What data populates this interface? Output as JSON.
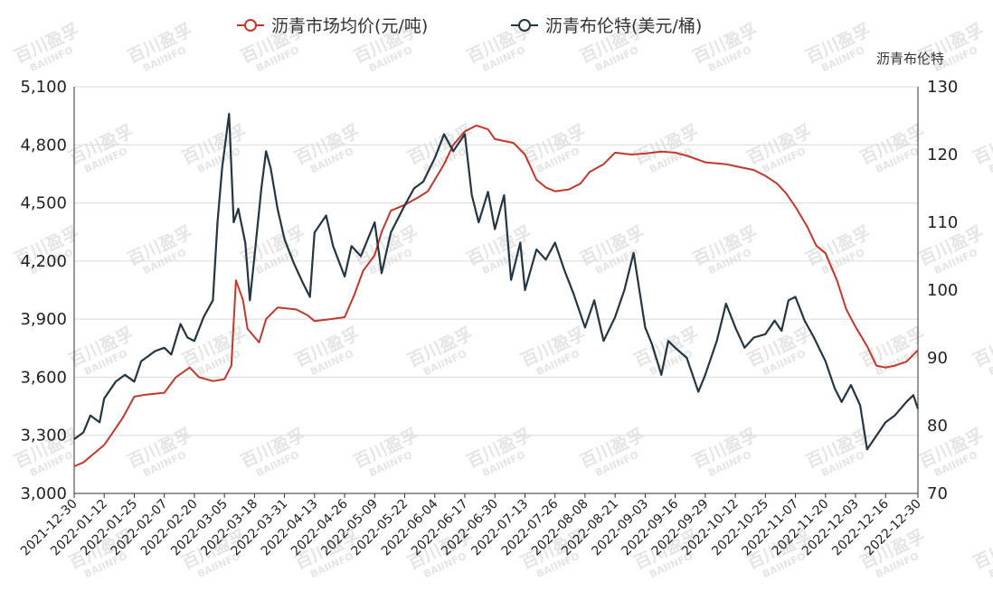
{
  "chart_data": {
    "type": "line",
    "title": "",
    "legend": {
      "placement": "top-center",
      "items": [
        "沥青市场均价(元/吨)",
        "沥青布伦特(美元/桶)"
      ]
    },
    "left_axis": {
      "label": "",
      "ylim": [
        3000,
        5100
      ],
      "ticks": [
        "3,000",
        "3,300",
        "3,600",
        "3,900",
        "4,200",
        "4,500",
        "4,800",
        "5,100"
      ]
    },
    "right_axis": {
      "label": "沥青布伦特",
      "ylim": [
        70,
        130
      ],
      "ticks": [
        "70",
        "80",
        "90",
        "100",
        "110",
        "120",
        "130"
      ]
    },
    "x_ticks": [
      "2021-12-30",
      "2022-01-12",
      "2022-01-25",
      "2022-02-07",
      "2022-02-20",
      "2022-03-05",
      "2022-03-18",
      "2022-03-31",
      "2022-04-13",
      "2022-04-26",
      "2022-05-09",
      "2022-05-22",
      "2022-06-04",
      "2022-06-17",
      "2022-06-30",
      "2022-07-13",
      "2022-07-26",
      "2022-08-08",
      "2022-08-21",
      "2022-09-03",
      "2022-09-16",
      "2022-09-29",
      "2022-10-12",
      "2022-10-25",
      "2022-11-07",
      "2022-11-20",
      "2022-12-03",
      "2022-12-16",
      "2022-12-30"
    ],
    "grid": true,
    "watermark": {
      "main": "百川盈孚",
      "sub": "BAIINFO"
    },
    "colors": {
      "price": "#c0392b",
      "brent": "#223645",
      "grid": "#d9d9d9"
    },
    "series": [
      {
        "name": "沥青市场均价(元/吨)",
        "axis": "left",
        "points": [
          [
            "2021-12-30",
            3140
          ],
          [
            "2022-01-03",
            3160
          ],
          [
            "2022-01-07",
            3200
          ],
          [
            "2022-01-12",
            3250
          ],
          [
            "2022-01-16",
            3320
          ],
          [
            "2022-01-20",
            3390
          ],
          [
            "2022-01-25",
            3500
          ],
          [
            "2022-01-30",
            3510
          ],
          [
            "2022-02-07",
            3520
          ],
          [
            "2022-02-12",
            3600
          ],
          [
            "2022-02-18",
            3650
          ],
          [
            "2022-02-22",
            3600
          ],
          [
            "2022-02-28",
            3580
          ],
          [
            "2022-03-05",
            3590
          ],
          [
            "2022-03-08",
            3660
          ],
          [
            "2022-03-10",
            4100
          ],
          [
            "2022-03-13",
            4000
          ],
          [
            "2022-03-15",
            3850
          ],
          [
            "2022-03-20",
            3780
          ],
          [
            "2022-03-23",
            3900
          ],
          [
            "2022-03-28",
            3960
          ],
          [
            "2022-04-05",
            3950
          ],
          [
            "2022-04-10",
            3920
          ],
          [
            "2022-04-13",
            3890
          ],
          [
            "2022-04-20",
            3900
          ],
          [
            "2022-04-26",
            3910
          ],
          [
            "2022-04-30",
            4020
          ],
          [
            "2022-05-04",
            4150
          ],
          [
            "2022-05-09",
            4230
          ],
          [
            "2022-05-12",
            4350
          ],
          [
            "2022-05-16",
            4460
          ],
          [
            "2022-05-22",
            4490
          ],
          [
            "2022-05-28",
            4530
          ],
          [
            "2022-06-01",
            4560
          ],
          [
            "2022-06-04",
            4620
          ],
          [
            "2022-06-08",
            4700
          ],
          [
            "2022-06-12",
            4800
          ],
          [
            "2022-06-17",
            4870
          ],
          [
            "2022-06-22",
            4900
          ],
          [
            "2022-06-27",
            4880
          ],
          [
            "2022-06-30",
            4830
          ],
          [
            "2022-07-04",
            4820
          ],
          [
            "2022-07-08",
            4810
          ],
          [
            "2022-07-13",
            4750
          ],
          [
            "2022-07-18",
            4620
          ],
          [
            "2022-07-22",
            4580
          ],
          [
            "2022-07-26",
            4560
          ],
          [
            "2022-08-01",
            4570
          ],
          [
            "2022-08-06",
            4600
          ],
          [
            "2022-08-10",
            4660
          ],
          [
            "2022-08-16",
            4700
          ],
          [
            "2022-08-21",
            4760
          ],
          [
            "2022-08-28",
            4750
          ],
          [
            "2022-09-03",
            4755
          ],
          [
            "2022-09-10",
            4765
          ],
          [
            "2022-09-16",
            4760
          ],
          [
            "2022-09-22",
            4740
          ],
          [
            "2022-09-29",
            4710
          ],
          [
            "2022-10-08",
            4700
          ],
          [
            "2022-10-12",
            4690
          ],
          [
            "2022-10-20",
            4670
          ],
          [
            "2022-10-25",
            4640
          ],
          [
            "2022-10-30",
            4600
          ],
          [
            "2022-11-03",
            4550
          ],
          [
            "2022-11-07",
            4480
          ],
          [
            "2022-11-12",
            4380
          ],
          [
            "2022-11-16",
            4280
          ],
          [
            "2022-11-20",
            4240
          ],
          [
            "2022-11-25",
            4100
          ],
          [
            "2022-11-29",
            3950
          ],
          [
            "2022-12-03",
            3860
          ],
          [
            "2022-12-08",
            3760
          ],
          [
            "2022-12-12",
            3660
          ],
          [
            "2022-12-16",
            3650
          ],
          [
            "2022-12-20",
            3660
          ],
          [
            "2022-12-25",
            3680
          ],
          [
            "2022-12-30",
            3740
          ]
        ]
      },
      {
        "name": "沥青布伦特(美元/桶)",
        "axis": "right",
        "points": [
          [
            "2021-12-30",
            78.0
          ],
          [
            "2022-01-03",
            79.0
          ],
          [
            "2022-01-06",
            81.5
          ],
          [
            "2022-01-10",
            80.5
          ],
          [
            "2022-01-12",
            84.0
          ],
          [
            "2022-01-17",
            86.5
          ],
          [
            "2022-01-21",
            87.5
          ],
          [
            "2022-01-25",
            86.5
          ],
          [
            "2022-01-28",
            89.5
          ],
          [
            "2022-02-03",
            91.0
          ],
          [
            "2022-02-07",
            91.5
          ],
          [
            "2022-02-10",
            90.5
          ],
          [
            "2022-02-14",
            95.0
          ],
          [
            "2022-02-17",
            93.0
          ],
          [
            "2022-02-20",
            92.5
          ],
          [
            "2022-02-24",
            96.0
          ],
          [
            "2022-02-28",
            98.5
          ],
          [
            "2022-03-02",
            110.0
          ],
          [
            "2022-03-04",
            118.0
          ],
          [
            "2022-03-07",
            126.0
          ],
          [
            "2022-03-09",
            110.0
          ],
          [
            "2022-03-11",
            112.0
          ],
          [
            "2022-03-14",
            107.0
          ],
          [
            "2022-03-16",
            98.5
          ],
          [
            "2022-03-18",
            105.0
          ],
          [
            "2022-03-21",
            115.0
          ],
          [
            "2022-03-23",
            120.5
          ],
          [
            "2022-03-25",
            118.0
          ],
          [
            "2022-03-28",
            112.0
          ],
          [
            "2022-03-31",
            107.5
          ],
          [
            "2022-04-04",
            104.0
          ],
          [
            "2022-04-08",
            101.0
          ],
          [
            "2022-04-11",
            99.0
          ],
          [
            "2022-04-13",
            108.5
          ],
          [
            "2022-04-18",
            111.0
          ],
          [
            "2022-04-21",
            106.5
          ],
          [
            "2022-04-26",
            102.0
          ],
          [
            "2022-04-29",
            106.5
          ],
          [
            "2022-05-03",
            105.0
          ],
          [
            "2022-05-09",
            110.0
          ],
          [
            "2022-05-12",
            102.5
          ],
          [
            "2022-05-16",
            108.5
          ],
          [
            "2022-05-22",
            112.5
          ],
          [
            "2022-05-26",
            115.0
          ],
          [
            "2022-05-30",
            116.0
          ],
          [
            "2022-06-04",
            119.5
          ],
          [
            "2022-06-08",
            123.0
          ],
          [
            "2022-06-12",
            120.5
          ],
          [
            "2022-06-17",
            123.0
          ],
          [
            "2022-06-20",
            114.0
          ],
          [
            "2022-06-23",
            110.0
          ],
          [
            "2022-06-27",
            114.5
          ],
          [
            "2022-06-30",
            109.0
          ],
          [
            "2022-07-04",
            114.0
          ],
          [
            "2022-07-07",
            101.5
          ],
          [
            "2022-07-11",
            107.0
          ],
          [
            "2022-07-13",
            100.0
          ],
          [
            "2022-07-18",
            106.0
          ],
          [
            "2022-07-22",
            104.5
          ],
          [
            "2022-07-26",
            107.0
          ],
          [
            "2022-07-30",
            103.0
          ],
          [
            "2022-08-03",
            99.5
          ],
          [
            "2022-08-08",
            94.5
          ],
          [
            "2022-08-12",
            98.5
          ],
          [
            "2022-08-16",
            92.5
          ],
          [
            "2022-08-21",
            96.0
          ],
          [
            "2022-08-25",
            100.0
          ],
          [
            "2022-08-29",
            105.5
          ],
          [
            "2022-09-03",
            94.5
          ],
          [
            "2022-09-06",
            92.0
          ],
          [
            "2022-09-10",
            87.5
          ],
          [
            "2022-09-13",
            92.5
          ],
          [
            "2022-09-16",
            91.5
          ],
          [
            "2022-09-21",
            90.0
          ],
          [
            "2022-09-26",
            85.0
          ],
          [
            "2022-09-29",
            87.5
          ],
          [
            "2022-10-04",
            92.5
          ],
          [
            "2022-10-08",
            98.0
          ],
          [
            "2022-10-12",
            94.5
          ],
          [
            "2022-10-16",
            91.5
          ],
          [
            "2022-10-20",
            93.0
          ],
          [
            "2022-10-25",
            93.5
          ],
          [
            "2022-10-29",
            95.5
          ],
          [
            "2022-11-01",
            94.0
          ],
          [
            "2022-11-04",
            98.5
          ],
          [
            "2022-11-07",
            99.0
          ],
          [
            "2022-11-11",
            95.5
          ],
          [
            "2022-11-15",
            93.0
          ],
          [
            "2022-11-20",
            89.5
          ],
          [
            "2022-11-24",
            85.5
          ],
          [
            "2022-11-27",
            83.5
          ],
          [
            "2022-12-01",
            86.0
          ],
          [
            "2022-12-05",
            83.0
          ],
          [
            "2022-12-08",
            76.5
          ],
          [
            "2022-12-12",
            78.5
          ],
          [
            "2022-12-16",
            80.5
          ],
          [
            "2022-12-20",
            81.5
          ],
          [
            "2022-12-25",
            83.5
          ],
          [
            "2022-12-28",
            84.5
          ],
          [
            "2022-12-30",
            82.5
          ]
        ]
      }
    ]
  }
}
